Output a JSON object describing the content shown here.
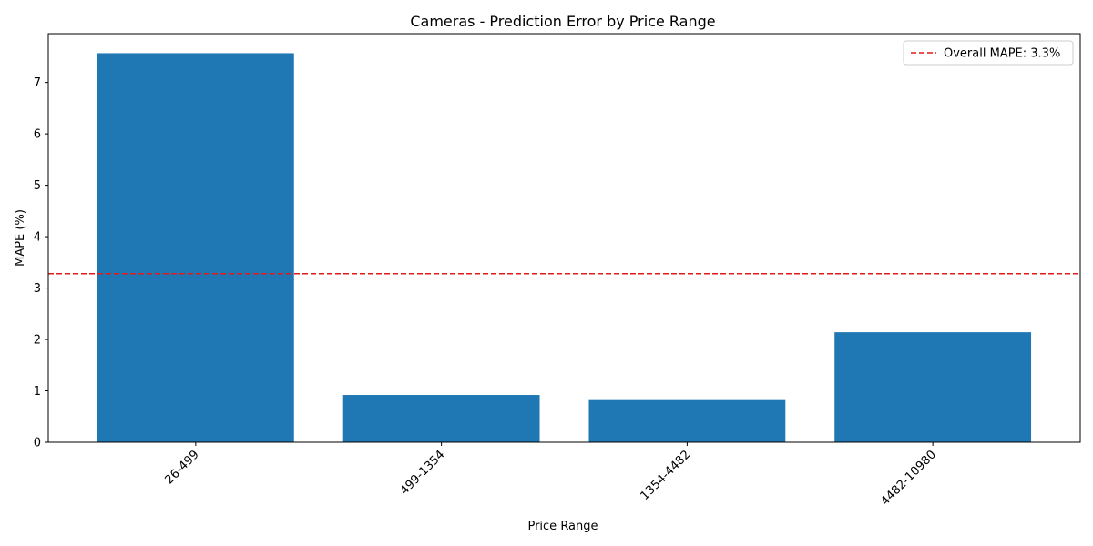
{
  "chart_data": {
    "type": "bar",
    "title": "Cameras - Prediction Error by Price Range",
    "xlabel": "Price Range",
    "ylabel": "MAPE (%)",
    "categories": [
      "26-499",
      "499-1354",
      "1354-4482",
      "4482-10980"
    ],
    "values": [
      7.57,
      0.92,
      0.82,
      2.14
    ],
    "ylim": [
      0,
      7.95
    ],
    "yticks": [
      0,
      1,
      2,
      3,
      4,
      5,
      6,
      7
    ],
    "reference_line": {
      "value": 3.28,
      "label": "Overall MAPE: 3.3%",
      "style": "dashed",
      "color": "#e31a1c"
    },
    "bar_color": "#1f77b4",
    "legend": {
      "position": "top-right",
      "entries": [
        "Overall MAPE: 3.3%"
      ]
    },
    "grid": false,
    "x_tick_rotation": "45 degrees"
  }
}
